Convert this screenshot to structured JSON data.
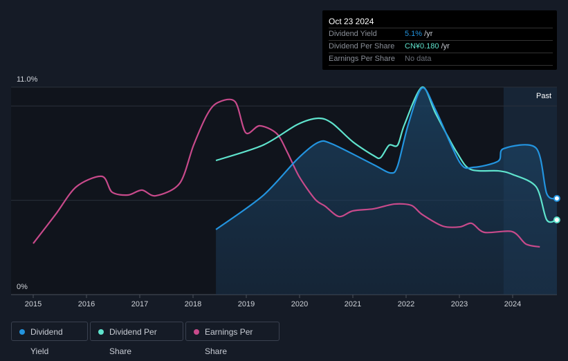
{
  "tooltip": {
    "date": "Oct 23 2024",
    "rows": [
      {
        "label": "Dividend Yield",
        "value": "5.1%",
        "unit": " /yr",
        "color": "#2394df"
      },
      {
        "label": "Dividend Per Share",
        "value": "CN¥0.180",
        "unit": " /yr",
        "color": "#5fe3cd"
      },
      {
        "label": "Earnings Per Share",
        "value": "No data",
        "unit": "",
        "color": "#6b7079"
      }
    ]
  },
  "legend": [
    {
      "label": "Dividend Yield",
      "color": "#2394df"
    },
    {
      "label": "Dividend Per Share",
      "color": "#5fe3cd"
    },
    {
      "label": "Earnings Per Share",
      "color": "#c84a8b"
    }
  ],
  "chart_data": {
    "type": "line",
    "title": "",
    "xlabel": "",
    "ylabel": "",
    "ylim": [
      0,
      11
    ],
    "xlim": [
      2014.78,
      2024.83
    ],
    "y_tick_labels": [
      "0%",
      "11.0%"
    ],
    "gridlines": [
      5,
      10,
      11
    ],
    "x_ticks": [
      2015,
      2016,
      2017,
      2018,
      2019,
      2020,
      2021,
      2022,
      2023,
      2024
    ],
    "past_label": "Past",
    "past_start": 2023.83,
    "series": [
      {
        "name": "Dividend Yield",
        "color": "#2394df",
        "fill": true,
        "points": [
          [
            2018.43,
            3.45
          ],
          [
            2019.31,
            5.24
          ],
          [
            2019.96,
            7.19
          ],
          [
            2020.35,
            8.07
          ],
          [
            2020.61,
            7.99
          ],
          [
            2021.39,
            6.89
          ],
          [
            2021.71,
            6.45
          ],
          [
            2021.84,
            6.82
          ],
          [
            2022.04,
            9.02
          ],
          [
            2022.3,
            10.96
          ],
          [
            2022.56,
            9.75
          ],
          [
            2023.01,
            7.0
          ],
          [
            2023.27,
            6.75
          ],
          [
            2023.73,
            7.08
          ],
          [
            2023.83,
            7.74
          ],
          [
            2024.44,
            7.77
          ],
          [
            2024.64,
            5.35
          ],
          [
            2024.83,
            5.1
          ]
        ]
      },
      {
        "name": "Dividend Per Share",
        "color": "#5fe3cd",
        "points": [
          [
            2018.43,
            7.11
          ],
          [
            2019.31,
            7.92
          ],
          [
            2019.96,
            9.02
          ],
          [
            2020.35,
            9.35
          ],
          [
            2020.61,
            9.09
          ],
          [
            2021.0,
            8.1
          ],
          [
            2021.39,
            7.37
          ],
          [
            2021.52,
            7.26
          ],
          [
            2021.68,
            7.92
          ],
          [
            2021.84,
            7.92
          ],
          [
            2021.97,
            9.02
          ],
          [
            2022.3,
            11.0
          ],
          [
            2022.56,
            9.57
          ],
          [
            2022.95,
            7.55
          ],
          [
            2023.21,
            6.64
          ],
          [
            2023.73,
            6.56
          ],
          [
            2023.99,
            6.38
          ],
          [
            2024.44,
            5.72
          ],
          [
            2024.64,
            3.96
          ],
          [
            2024.83,
            3.96
          ]
        ]
      },
      {
        "name": "Earnings Per Share",
        "color": "#c84a8b",
        "points": [
          [
            2015.0,
            2.71
          ],
          [
            2015.42,
            4.25
          ],
          [
            2015.81,
            5.72
          ],
          [
            2016.29,
            6.27
          ],
          [
            2016.48,
            5.43
          ],
          [
            2016.78,
            5.28
          ],
          [
            2017.04,
            5.54
          ],
          [
            2017.3,
            5.24
          ],
          [
            2017.75,
            5.9
          ],
          [
            2018.01,
            7.92
          ],
          [
            2018.27,
            9.57
          ],
          [
            2018.47,
            10.19
          ],
          [
            2018.79,
            10.23
          ],
          [
            2018.99,
            8.58
          ],
          [
            2019.25,
            8.95
          ],
          [
            2019.57,
            8.54
          ],
          [
            2019.77,
            7.55
          ],
          [
            2019.99,
            6.27
          ],
          [
            2020.29,
            5.06
          ],
          [
            2020.48,
            4.69
          ],
          [
            2020.74,
            4.14
          ],
          [
            2021.0,
            4.44
          ],
          [
            2021.39,
            4.55
          ],
          [
            2021.78,
            4.8
          ],
          [
            2022.1,
            4.73
          ],
          [
            2022.3,
            4.25
          ],
          [
            2022.69,
            3.63
          ],
          [
            2023.01,
            3.59
          ],
          [
            2023.23,
            3.78
          ],
          [
            2023.47,
            3.3
          ],
          [
            2023.99,
            3.34
          ],
          [
            2024.25,
            2.68
          ],
          [
            2024.51,
            2.53
          ]
        ]
      }
    ]
  }
}
